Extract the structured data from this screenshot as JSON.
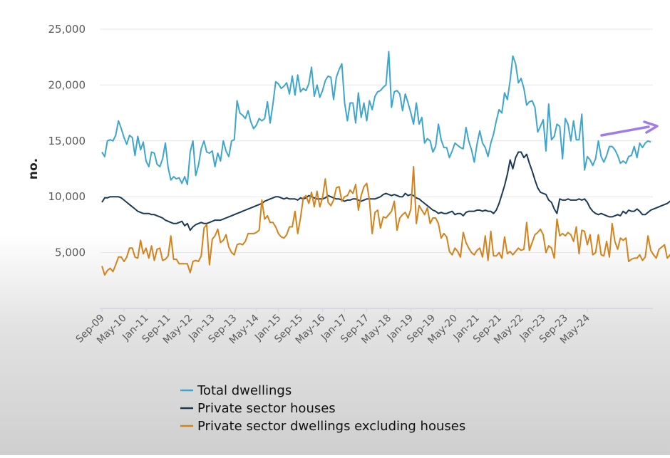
{
  "chart_data": {
    "type": "line",
    "ylabel": "no.",
    "ylim": [
      0,
      25000
    ],
    "yticks": [
      5000,
      10000,
      15000,
      20000,
      25000
    ],
    "ytick_labels": [
      "5,000",
      "10,000",
      "15,000",
      "20,000",
      "25,000"
    ],
    "x_start": "Sep-09",
    "x_ticks": [
      "Sep-09",
      "May-10",
      "Jan-11",
      "Sep-11",
      "May-12",
      "Jan-13",
      "Sep-13",
      "May-14",
      "Jan-15",
      "Sep-15",
      "May-16",
      "Jan-17",
      "Sep-17",
      "May-18",
      "Jan-19",
      "Sep-19",
      "May-20",
      "Jan-21",
      "Sep-21",
      "May-22",
      "Jan-23",
      "Sep-23",
      "May-24"
    ],
    "grid": true,
    "legend_position": "bottom",
    "series": [
      {
        "name": "Total dwellings",
        "color": "#3ea6cc",
        "values": [
          14000,
          13600,
          15000,
          15100,
          15000,
          15500,
          16800,
          16100,
          15300,
          14700,
          15500,
          15300,
          13700,
          15400,
          14200,
          14900,
          13200,
          12700,
          14000,
          13900,
          12900,
          12700,
          13400,
          14800,
          12600,
          11500,
          11800,
          11600,
          11700,
          11200,
          11800,
          11100,
          14000,
          15000,
          11900,
          12800,
          14300,
          15000,
          14000,
          13900,
          14100,
          12700,
          13900,
          13200,
          15000,
          14100,
          13600,
          15000,
          15100,
          18600,
          17500,
          17300,
          17000,
          17700,
          16700,
          16100,
          16400,
          17000,
          16800,
          17000,
          18500,
          16600,
          18300,
          20300,
          20100,
          19700,
          19900,
          20200,
          19200,
          20800,
          19100,
          20900,
          19400,
          19700,
          19500,
          20100,
          21600,
          19000,
          20000,
          18900,
          19500,
          20400,
          20800,
          20700,
          18700,
          20700,
          21400,
          21900,
          18400,
          16800,
          18400,
          18400,
          16600,
          19300,
          17100,
          18400,
          16800,
          18600,
          17800,
          19000,
          19400,
          19500,
          19800,
          20000,
          23000,
          18000,
          19400,
          19500,
          19200,
          17700,
          19200,
          18400,
          17500,
          16500,
          18400,
          16500,
          17100,
          14800,
          15200,
          15000,
          14000,
          14500,
          16500,
          15100,
          14400,
          14400,
          13500,
          14100,
          14800,
          14600,
          14400,
          14300,
          16200,
          15000,
          14200,
          13100,
          14700,
          15900,
          14800,
          14400,
          13600,
          14800,
          15600,
          16800,
          17800,
          17500,
          19300,
          18700,
          20400,
          22600,
          21900,
          20200,
          20600,
          19700,
          18200,
          18500,
          18600,
          18000,
          15800,
          16300,
          16900,
          14100,
          18300,
          15100,
          15400,
          16500,
          16300,
          13400,
          17000,
          16500,
          15000,
          16800,
          15100,
          15100,
          17400,
          12400,
          13600,
          13300,
          12800,
          13400,
          15000,
          13600,
          13100,
          13700,
          14500,
          14500,
          14200,
          13700,
          13000,
          13200,
          13000,
          13600,
          13700,
          14500,
          13500,
          14800,
          14400,
          14800,
          15000,
          14900
        ]
      },
      {
        "name": "Private sector houses",
        "color": "#1c3a56",
        "values": [
          9500,
          9900,
          9900,
          10000,
          10000,
          10000,
          10000,
          9900,
          9700,
          9500,
          9300,
          9100,
          8900,
          8700,
          8600,
          8500,
          8500,
          8500,
          8400,
          8400,
          8300,
          8200,
          8100,
          7900,
          7800,
          7700,
          7600,
          7600,
          7700,
          7800,
          7400,
          7600,
          7000,
          7300,
          7500,
          7600,
          7700,
          7600,
          7600,
          7700,
          7800,
          7900,
          7900,
          7900,
          8000,
          8100,
          8200,
          8300,
          8400,
          8500,
          8600,
          8700,
          8800,
          8900,
          9000,
          9100,
          9200,
          9300,
          9400,
          9600,
          9700,
          9800,
          9900,
          10000,
          10000,
          9900,
          9800,
          9900,
          9800,
          9800,
          9800,
          9700,
          9900,
          9800,
          9900,
          10100,
          10000,
          9900,
          9800,
          9800,
          9800,
          9900,
          10100,
          10000,
          9900,
          9800,
          9800,
          9700,
          9600,
          9700,
          9700,
          9800,
          9800,
          9700,
          9600,
          9700,
          9800,
          9800,
          9800,
          9800,
          9900,
          10000,
          10200,
          10300,
          10200,
          10100,
          10200,
          10100,
          10000,
          10000,
          10300,
          10100,
          10200,
          10100,
          9900,
          9800,
          9600,
          9400,
          9200,
          9000,
          8800,
          8700,
          8500,
          8600,
          8500,
          8500,
          8600,
          8700,
          8400,
          8500,
          8500,
          8300,
          8600,
          8700,
          8700,
          8700,
          8800,
          8800,
          8700,
          8800,
          8700,
          8700,
          8500,
          8800,
          9400,
          10200,
          11000,
          12000,
          13300,
          12500,
          13500,
          14000,
          14000,
          13500,
          13800,
          13000,
          12300,
          11500,
          10800,
          10400,
          10300,
          10200,
          9700,
          9500,
          8900,
          8500,
          9800,
          9700,
          9700,
          9800,
          9700,
          9700,
          9700,
          9800,
          9700,
          9800,
          9500,
          9000,
          8700,
          8500,
          8400,
          8500,
          8400,
          8300,
          8200,
          8200,
          8300,
          8400,
          8300,
          8700,
          8500,
          8800,
          8700,
          8700,
          8900,
          8700,
          8400,
          8400,
          8600,
          8800,
          8900,
          9000,
          9100,
          9200,
          9300,
          9400,
          9600,
          9700
        ]
      },
      {
        "name": "Private sector dwellings excluding houses",
        "color": "#d4831c",
        "values": [
          3800,
          3000,
          3400,
          3600,
          3300,
          3900,
          4600,
          4600,
          4200,
          4600,
          5400,
          5400,
          4600,
          4500,
          6100,
          4900,
          5400,
          4500,
          5600,
          4300,
          5300,
          5400,
          4300,
          4400,
          4700,
          6500,
          4400,
          4400,
          4000,
          4000,
          4000,
          4000,
          3200,
          4200,
          4300,
          4200,
          4700,
          7200,
          7500,
          3900,
          6200,
          6500,
          7100,
          5900,
          6100,
          6600,
          5500,
          5000,
          4800,
          5700,
          5800,
          5700,
          6000,
          6700,
          6700,
          6700,
          6800,
          7000,
          9700,
          8000,
          8300,
          7700,
          7700,
          7300,
          6700,
          6400,
          6300,
          6600,
          7300,
          7300,
          8700,
          6700,
          8100,
          9900,
          10100,
          9400,
          10400,
          9100,
          10500,
          9100,
          9900,
          11600,
          9500,
          9200,
          9700,
          10800,
          10900,
          9600,
          10000,
          10100,
          10600,
          10300,
          11100,
          8800,
          10100,
          10900,
          11200,
          9700,
          6700,
          8600,
          8800,
          7200,
          8200,
          8100,
          8400,
          8700,
          9600,
          7000,
          8100,
          8400,
          8600,
          8100,
          8900,
          12700,
          7600,
          9200,
          8800,
          8400,
          9000,
          7600,
          8100,
          8100,
          7600,
          6300,
          6700,
          6400,
          5100,
          4800,
          5400,
          5100,
          4600,
          6800,
          5900,
          5400,
          5000,
          4800,
          5200,
          5400,
          4600,
          6500,
          4300,
          6900,
          4700,
          4700,
          5000,
          4500,
          6400,
          4900,
          5100,
          4800,
          5100,
          5400,
          5200,
          5300,
          7700,
          5200,
          5900,
          6600,
          6800,
          7100,
          6600,
          5000,
          5600,
          5400,
          4500,
          8000,
          6500,
          6700,
          6500,
          6800,
          6600,
          6000,
          7300,
          4900,
          7000,
          6900,
          5700,
          6600,
          4800,
          5000,
          6600,
          4800,
          4700,
          6000,
          4600,
          7600,
          6000,
          5300,
          6300,
          6100,
          6300,
          4200,
          4400,
          4500,
          4500,
          4800,
          4300,
          4600,
          6500,
          5200,
          4800,
          4500,
          5300,
          5500,
          5700,
          4500,
          4800,
          4000,
          4000,
          4200,
          4300,
          5000,
          4000,
          5200,
          4500,
          4600
        ]
      }
    ]
  }
}
